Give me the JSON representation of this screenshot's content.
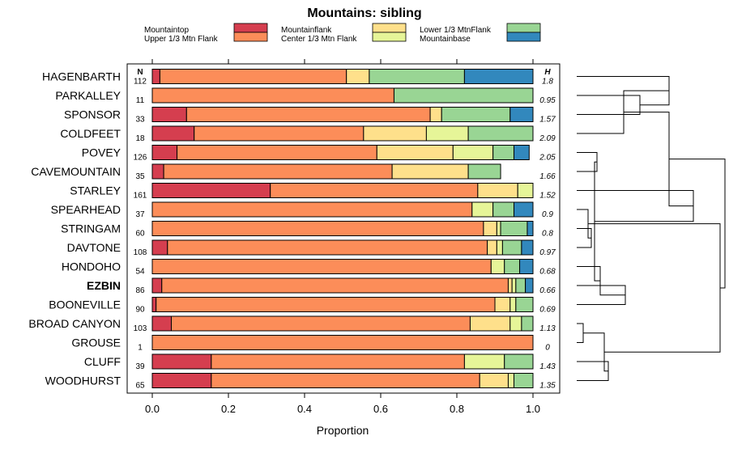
{
  "chart_data": {
    "type": "bar",
    "subtype": "stacked-horizontal-proportion-with-dendrogram",
    "title": "Mountains: sibling",
    "xlabel": "Proportion",
    "ylabel": "",
    "xlim": [
      0,
      1
    ],
    "xticks": [
      "0.0",
      "0.2",
      "0.4",
      "0.6",
      "0.8",
      "1.0"
    ],
    "n_header": "N",
    "h_header": "H",
    "highlight_category": "EZBIN",
    "legend": [
      {
        "name": "Mountaintop",
        "color": "#d53e4f"
      },
      {
        "name": "Upper 1/3 Mtn Flank",
        "color": "#fc8d59"
      },
      {
        "name": "Mountainflank",
        "color": "#fee08b"
      },
      {
        "name": "Center 1/3 Mtn Flank",
        "color": "#e6f598"
      },
      {
        "name": "Lower 1/3 MtnFlank",
        "color": "#99d594"
      },
      {
        "name": "Mountainbase",
        "color": "#3288bd"
      }
    ],
    "categories": [
      "HAGENBARTH",
      "PARKALLEY",
      "SPONSOR",
      "COLDFEET",
      "POVEY",
      "CAVEMOUNTAIN",
      "STARLEY",
      "SPEARHEAD",
      "STRINGAM",
      "DAVTONE",
      "HONDOHO",
      "EZBIN",
      "BOONEVILLE",
      "BROAD CANYON",
      "GROUSE",
      "CLUFF",
      "WOODHURST"
    ],
    "n_values": [
      "112",
      "11",
      "33",
      "18",
      "126",
      "35",
      "161",
      "37",
      "60",
      "108",
      "54",
      "86",
      "90",
      "103",
      "1",
      "39",
      "65"
    ],
    "h_values": [
      "1.8",
      "0.95",
      "1.57",
      "2.09",
      "2.05",
      "1.66",
      "1.52",
      "0.9",
      "0.8",
      "0.97",
      "0.68",
      "0.66",
      "0.69",
      "1.13",
      "0",
      "1.43",
      "1.35"
    ],
    "series": [
      {
        "name": "Mountaintop",
        "values": [
          0.02,
          0.0,
          0.09,
          0.11,
          0.065,
          0.03,
          0.31,
          0.0,
          0.0,
          0.04,
          0.0,
          0.025,
          0.01,
          0.05,
          0.0,
          0.155,
          0.155
        ]
      },
      {
        "name": "Upper 1/3 Mtn Flank",
        "values": [
          0.49,
          0.635,
          0.64,
          0.445,
          0.525,
          0.6,
          0.545,
          0.84,
          0.87,
          0.84,
          0.89,
          0.91,
          0.89,
          0.785,
          1.0,
          0.665,
          0.705
        ]
      },
      {
        "name": "Mountainflank",
        "values": [
          0.06,
          0.0,
          0.03,
          0.165,
          0.2,
          0.2,
          0.105,
          0.0,
          0.035,
          0.025,
          0.0,
          0.01,
          0.04,
          0.105,
          0.0,
          0.0,
          0.075
        ]
      },
      {
        "name": "Center 1/3 Mtn Flank",
        "values": [
          0.0,
          0.0,
          0.0,
          0.11,
          0.105,
          0.0,
          0.04,
          0.055,
          0.01,
          0.015,
          0.035,
          0.01,
          0.015,
          0.03,
          0.0,
          0.105,
          0.015
        ]
      },
      {
        "name": "Lower 1/3 MtnFlank",
        "values": [
          0.25,
          0.365,
          0.18,
          0.17,
          0.055,
          0.085,
          0.0,
          0.055,
          0.07,
          0.05,
          0.04,
          0.025,
          0.045,
          0.03,
          0.0,
          0.075,
          0.05
        ]
      },
      {
        "name": "Mountainbase",
        "values": [
          0.18,
          0.0,
          0.06,
          0.0,
          0.04,
          0.0,
          0.0,
          0.05,
          0.015,
          0.03,
          0.035,
          0.02,
          0.0,
          0.0,
          0.0,
          0.0,
          0.0
        ]
      }
    ],
    "dendrogram_merges": [
      [
        1,
        2
      ],
      [
        11,
        12
      ],
      [
        15,
        16
      ],
      [
        0,
        17
      ],
      [
        8,
        9
      ],
      [
        4,
        5
      ],
      [
        10,
        18
      ],
      [
        7,
        21
      ],
      [
        13,
        14
      ],
      [
        22,
        23
      ],
      [
        3,
        20
      ],
      [
        6,
        26
      ],
      [
        25,
        19
      ],
      [
        27,
        28
      ],
      [
        24,
        29
      ],
      [
        31,
        30
      ]
    ]
  }
}
